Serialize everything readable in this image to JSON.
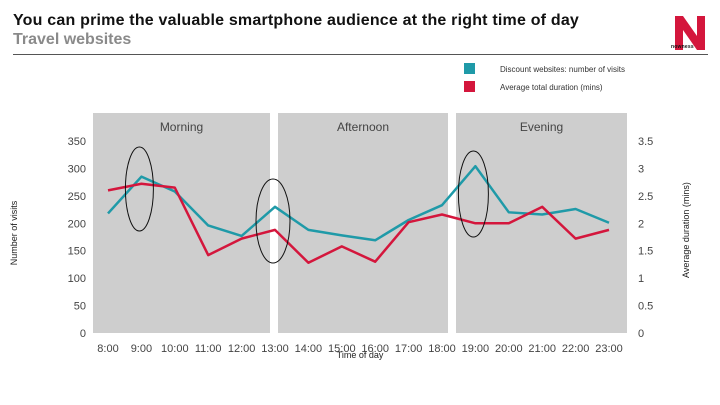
{
  "header": {
    "title": "You can prime the valuable smartphone audience at the right time of day",
    "subtitle": "Travel websites",
    "logo_text": "nowness"
  },
  "colors": {
    "visits": "#1f9aa8",
    "duration": "#d4163c",
    "band": "#cecece",
    "logo": "#d4163c"
  },
  "chart_data": {
    "type": "line",
    "xlabel": "Time of day",
    "ylabel_left": "Number of visits",
    "ylabel_right": "Average duration (mins)",
    "ylim_left": [
      0,
      350
    ],
    "ylim_right": [
      0,
      3.5
    ],
    "yticks_left": [
      "0",
      "50",
      "100",
      "150",
      "200",
      "250",
      "300",
      "350"
    ],
    "yticks_right": [
      "0",
      "0.5",
      "1",
      "1.5",
      "2",
      "2.5",
      "3",
      "3.5"
    ],
    "x": [
      "8:00",
      "9:00",
      "10:00",
      "11:00",
      "12:00",
      "13:00",
      "14:00",
      "15:00",
      "16:00",
      "17:00",
      "18:00",
      "19:00",
      "20:00",
      "21:00",
      "22:00",
      "23:00"
    ],
    "legend": [
      "Discount websites: number of visits",
      "Average total duration (mins)"
    ],
    "periods": [
      {
        "label": "Morning",
        "from": "8:00",
        "to": "12:00"
      },
      {
        "label": "Afternoon",
        "from": "13:00",
        "to": "18:00"
      },
      {
        "label": "Evening",
        "from": "19:00",
        "to": "23:00"
      }
    ],
    "series": [
      {
        "axis": "left",
        "values": [
          218,
          285,
          258,
          196,
          177,
          230,
          188,
          178,
          169,
          206,
          233,
          304,
          220,
          216,
          226,
          201
        ]
      },
      {
        "axis": "right",
        "values": [
          2.6,
          2.72,
          2.65,
          1.42,
          1.72,
          1.88,
          1.28,
          1.58,
          1.3,
          2.02,
          2.16,
          2.0,
          2.0,
          2.3,
          1.72,
          1.88
        ]
      }
    ],
    "highlights": [
      "9:00",
      "13:00",
      "19:00"
    ]
  }
}
